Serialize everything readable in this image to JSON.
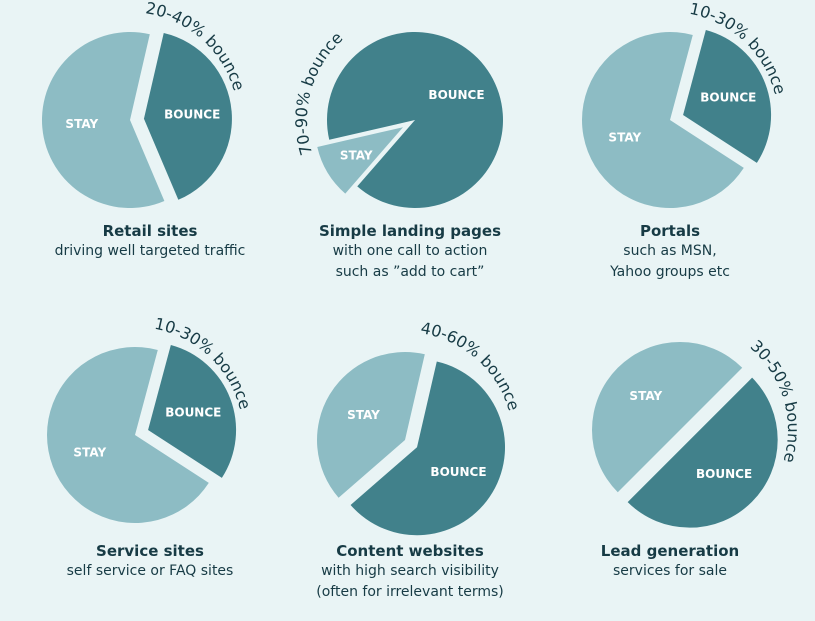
{
  "colors": {
    "bounce": "#41818b",
    "stay": "#8dbcc4",
    "background": "#e9f4f5",
    "text": "#173b45"
  },
  "chart_data": [
    {
      "type": "pie",
      "values": {
        "bounce": 40,
        "stay": 60
      },
      "slice_labels": {
        "bounce": "BOUNCE",
        "stay": "STAY"
      },
      "range_label": "20-40% bounce",
      "title": "Retail sites",
      "subtitle": [
        "driving well targeted traffic"
      ],
      "exploded": "bounce"
    },
    {
      "type": "pie",
      "values": {
        "bounce": 90,
        "stay": 10
      },
      "slice_labels": {
        "bounce": "BOUNCE",
        "stay": "STAY"
      },
      "range_label": "70-90% bounce",
      "title": "Simple landing pages",
      "subtitle": [
        "with one call to action",
        "such as ”add to cart”"
      ],
      "exploded": "stay"
    },
    {
      "type": "pie",
      "values": {
        "bounce": 30,
        "stay": 70
      },
      "slice_labels": {
        "bounce": "BOUNCE",
        "stay": "STAY"
      },
      "range_label": "10-30% bounce",
      "title": "Portals",
      "subtitle": [
        "such as MSN,",
        "Yahoo groups etc"
      ],
      "exploded": "bounce"
    },
    {
      "type": "pie",
      "values": {
        "bounce": 30,
        "stay": 70
      },
      "slice_labels": {
        "bounce": "BOUNCE",
        "stay": "STAY"
      },
      "range_label": "10-30% bounce",
      "title": "Service sites",
      "subtitle": [
        "self service or FAQ sites"
      ],
      "exploded": "bounce"
    },
    {
      "type": "pie",
      "values": {
        "bounce": 60,
        "stay": 40
      },
      "slice_labels": {
        "bounce": "BOUNCE",
        "stay": "STAY"
      },
      "range_label": "40-60% bounce",
      "title": "Content websites",
      "subtitle": [
        "with high search visibility",
        "(often for irrelevant terms)"
      ],
      "exploded": "bounce"
    },
    {
      "type": "pie",
      "values": {
        "bounce": 50,
        "stay": 50
      },
      "slice_labels": {
        "bounce": "BOUNCE",
        "stay": "STAY"
      },
      "range_label": "30-50% bounce",
      "title": "Lead generation",
      "subtitle": [
        "services for sale"
      ],
      "exploded": "bounce"
    }
  ]
}
